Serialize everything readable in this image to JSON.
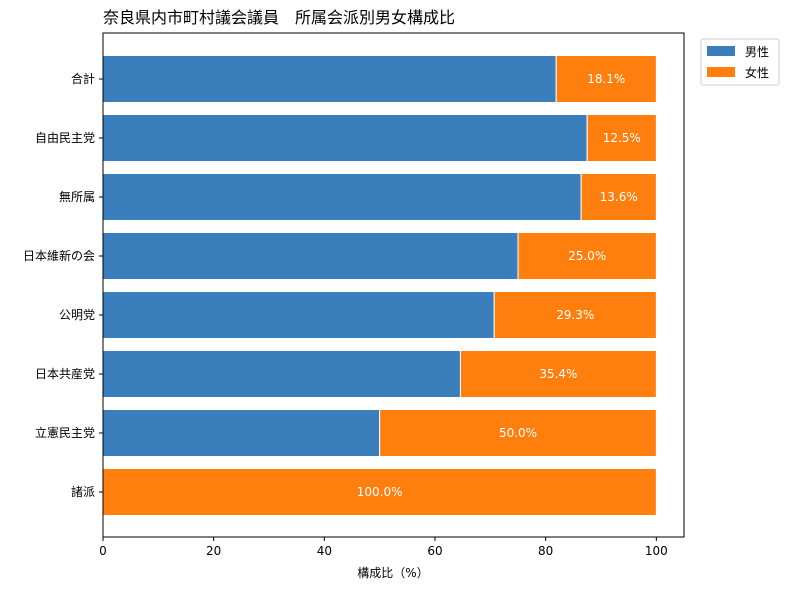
{
  "chart_data": {
    "type": "bar",
    "orientation": "horizontal",
    "stacked": true,
    "title": "奈良県内市町村議会議員　所属会派別男女構成比",
    "xlabel": "構成比（%）",
    "ylabel": "",
    "xlim": [
      0,
      105
    ],
    "x_ticks": [
      "0",
      "20",
      "40",
      "60",
      "80",
      "100"
    ],
    "categories": [
      "合計",
      "自由民主党",
      "無所属",
      "日本維新の会",
      "公明党",
      "日本共産党",
      "立憲民主党",
      "諸派"
    ],
    "series": [
      {
        "name": "男性",
        "color": "#3a7ebc",
        "values": [
          81.9,
          87.5,
          86.4,
          75.0,
          70.7,
          64.6,
          50.0,
          0.0
        ]
      },
      {
        "name": "女性",
        "color": "#ff7f0e",
        "values": [
          18.1,
          12.5,
          13.6,
          25.0,
          29.3,
          35.4,
          50.0,
          100.0
        ],
        "labels": [
          "18.1%",
          "12.5%",
          "13.6%",
          "25.0%",
          "29.3%",
          "35.4%",
          "50.0%",
          "100.0%"
        ]
      }
    ],
    "legend_position": "outside-top-right",
    "grid": false
  }
}
